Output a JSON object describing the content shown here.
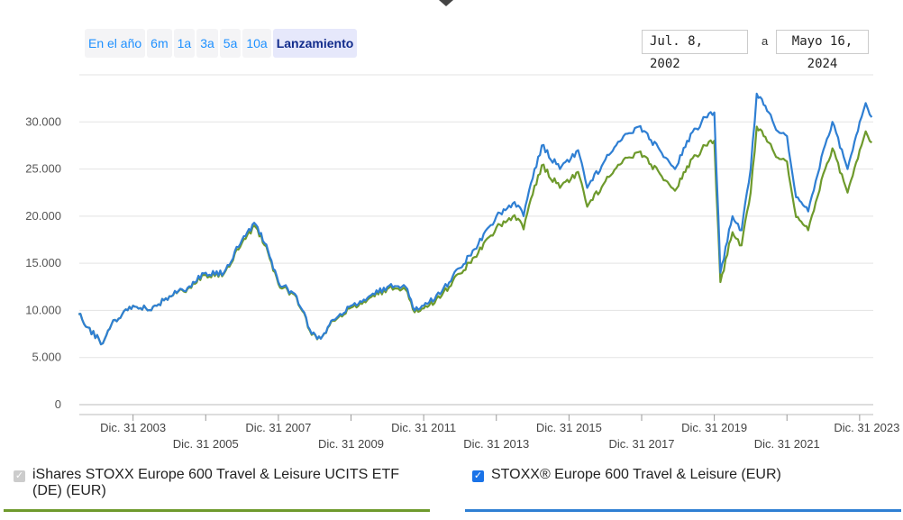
{
  "range_buttons": [
    "En el año",
    "6m",
    "1a",
    "3a",
    "5a",
    "10a",
    "Lanzamiento"
  ],
  "active_range": "Lanzamiento",
  "date_from": "Jul. 8, 2002",
  "date_separator": "a",
  "date_to": "Mayo 16, 2024",
  "colors": {
    "etf": "#6e9a2c",
    "index": "#2f7fd3"
  },
  "legend": {
    "etf": {
      "label": "iShares STOXX Europe 600 Travel & Leisure UCITS ETF (DE) (EUR)",
      "checked": true,
      "disabled": true
    },
    "index": {
      "label": "STOXX® Europe 600 Travel & Leisure (EUR)",
      "checked": true
    }
  },
  "chart_data": {
    "type": "line",
    "xlim": [
      "2002-07-08",
      "2024-05-16"
    ],
    "ylim": [
      0,
      35000
    ],
    "grid": true,
    "y_ticks": [
      {
        "v": 0,
        "label": "0"
      },
      {
        "v": 5000,
        "label": "5.000"
      },
      {
        "v": 10000,
        "label": "10.000"
      },
      {
        "v": 15000,
        "label": "15.000"
      },
      {
        "v": 20000,
        "label": "20.000"
      },
      {
        "v": 25000,
        "label": "25.000"
      },
      {
        "v": 30000,
        "label": "30.000"
      }
    ],
    "x_ticks": [
      {
        "d": "2003-12-31",
        "label": "Dic. 31 2003"
      },
      {
        "d": "2005-12-31",
        "label": "Dic. 31 2005"
      },
      {
        "d": "2007-12-31",
        "label": "Dic. 31 2007"
      },
      {
        "d": "2009-12-31",
        "label": "Dic. 31 2009"
      },
      {
        "d": "2011-12-31",
        "label": "Dic. 31 2011"
      },
      {
        "d": "2013-12-31",
        "label": "Dic. 31 2013"
      },
      {
        "d": "2015-12-31",
        "label": "Dic. 31 2015"
      },
      {
        "d": "2017-12-31",
        "label": "Dic. 31 2017"
      },
      {
        "d": "2019-12-31",
        "label": "Dic. 31 2019"
      },
      {
        "d": "2021-12-31",
        "label": "Dic. 31 2021"
      },
      {
        "d": "2023-12-31",
        "label": "Dic. 31 2023"
      }
    ],
    "x": [
      "2002-07",
      "2002-10",
      "2003-03",
      "2003-07",
      "2004-01",
      "2004-07",
      "2005-01",
      "2005-07",
      "2006-01",
      "2006-07",
      "2007-01",
      "2007-05",
      "2007-09",
      "2008-01",
      "2008-07",
      "2008-12",
      "2009-03",
      "2009-07",
      "2010-01",
      "2010-07",
      "2011-01",
      "2011-07",
      "2011-10",
      "2012-01",
      "2012-07",
      "2013-01",
      "2013-07",
      "2014-01",
      "2014-07",
      "2014-10",
      "2015-01",
      "2015-04",
      "2015-10",
      "2016-04",
      "2016-07",
      "2017-01",
      "2017-07",
      "2017-12",
      "2018-07",
      "2018-12",
      "2019-04",
      "2019-10",
      "2020-01",
      "2020-03",
      "2020-07",
      "2020-10",
      "2021-01",
      "2021-03",
      "2021-07",
      "2021-10",
      "2022-01",
      "2022-04",
      "2022-08",
      "2023-01",
      "2023-04",
      "2023-09",
      "2024-01",
      "2024-03",
      "2024-05"
    ],
    "series": [
      {
        "name": "iShares STOXX Europe 600 Travel & Leisure UCITS ETF (DE) (EUR)",
        "values": [
          9600,
          8200,
          6500,
          9000,
          10500,
          10000,
          11500,
          12300,
          13800,
          13900,
          17200,
          19000,
          16800,
          12800,
          11400,
          7400,
          7000,
          8900,
          10300,
          11300,
          12300,
          12200,
          9800,
          10200,
          11600,
          13900,
          16100,
          18800,
          20100,
          18600,
          22300,
          25400,
          23000,
          24700,
          21000,
          23700,
          26000,
          26800,
          24500,
          22700,
          25300,
          27500,
          28000,
          13000,
          18300,
          16900,
          22500,
          29500,
          27800,
          26200,
          25800,
          19900,
          18500,
          24500,
          27200,
          22500,
          27000,
          29000,
          27800
        ]
      },
      {
        "name": "STOXX® Europe 600 Travel & Leisure (EUR)",
        "values": [
          9600,
          8200,
          6500,
          9000,
          10500,
          10000,
          11500,
          12400,
          14000,
          14000,
          17500,
          19300,
          17000,
          13000,
          11500,
          7500,
          7000,
          9000,
          10500,
          11500,
          12500,
          12500,
          10000,
          10500,
          12000,
          14500,
          17000,
          20000,
          21500,
          20000,
          24000,
          27500,
          25000,
          27000,
          23000,
          26000,
          28500,
          29500,
          27000,
          25000,
          28000,
          30500,
          31000,
          14000,
          20000,
          18500,
          25000,
          33000,
          31000,
          29000,
          28500,
          22000,
          20500,
          27000,
          30000,
          25000,
          30000,
          32000,
          30500
        ]
      }
    ]
  }
}
